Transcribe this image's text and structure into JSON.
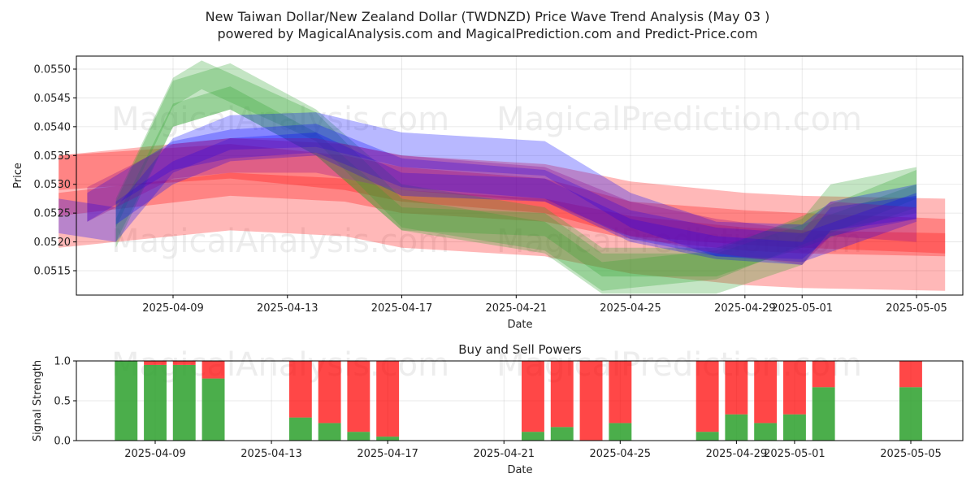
{
  "title": "New Taiwan Dollar/New Zealand Dollar (TWDNZD) Price Wave Trend Analysis (May 03 )",
  "subtitle": "powered by MagicalAnalysis.com and MagicalPrediction.com and Predict-Price.com",
  "watermarks": [
    "MagicalAnalysis.com",
    "MagicalPrediction.com"
  ],
  "chart_data": [
    {
      "type": "area",
      "xlabel": "Date",
      "ylabel": "Price",
      "x_range": [
        "2025-04-05",
        "2025-05-06"
      ],
      "ylim": [
        0.0511,
        0.0552
      ],
      "x_ticks": [
        "2025-04-09",
        "2025-04-13",
        "2025-04-17",
        "2025-04-21",
        "2025-04-25",
        "2025-04-29",
        "2025-05-01",
        "2025-05-05"
      ],
      "y_ticks": [
        "0.0515",
        "0.0520",
        "0.0525",
        "0.0530",
        "0.0535",
        "0.0540",
        "0.0545",
        "0.0550"
      ],
      "grid": true,
      "series": [
        {
          "color": "#ff0000",
          "bands": [
            {
              "width": 0.0016,
              "points": [
                [
                  "2025-04-05",
                  0.0527
                ],
                [
                  "2025-04-11",
                  0.053
                ],
                [
                  "2025-04-15",
                  0.0529
                ],
                [
                  "2025-04-17",
                  0.0527
                ],
                [
                  "2025-04-22",
                  0.05255
                ],
                [
                  "2025-04-25",
                  0.05225
                ],
                [
                  "2025-04-29",
                  0.05205
                ],
                [
                  "2025-05-01",
                  0.052
                ],
                [
                  "2025-05-06",
                  0.05195
                ]
              ]
            },
            {
              "width": 0.0004,
              "points": [
                [
                  "2025-04-05",
                  0.05265
                ],
                [
                  "2025-04-11",
                  0.053
                ],
                [
                  "2025-04-15",
                  0.0529
                ],
                [
                  "2025-04-17",
                  0.0527
                ],
                [
                  "2025-04-22",
                  0.05255
                ],
                [
                  "2025-04-25",
                  0.05225
                ],
                [
                  "2025-04-29",
                  0.05205
                ],
                [
                  "2025-05-01",
                  0.052
                ],
                [
                  "2025-05-06",
                  0.05195
                ]
              ]
            },
            {
              "width": 0.0006,
              "points": [
                [
                  "2025-04-05",
                  0.0532
                ],
                [
                  "2025-04-11",
                  0.0534
                ],
                [
                  "2025-04-15",
                  0.0532
                ],
                [
                  "2025-04-17",
                  0.053
                ],
                [
                  "2025-04-22",
                  0.0528
                ],
                [
                  "2025-04-25",
                  0.0524
                ],
                [
                  "2025-04-29",
                  0.05225
                ],
                [
                  "2025-05-01",
                  0.0522
                ],
                [
                  "2025-05-06",
                  0.0521
                ]
              ]
            }
          ]
        },
        {
          "color": "#2ca02c",
          "bands": [
            {
              "width": 0.0008,
              "points": [
                [
                  "2025-04-07",
                  0.0523
                ],
                [
                  "2025-04-09",
                  0.0544
                ],
                [
                  "2025-04-11",
                  0.0547
                ],
                [
                  "2025-04-14",
                  0.0539
                ],
                [
                  "2025-04-17",
                  0.0526
                ],
                [
                  "2025-04-22",
                  0.0522
                ],
                [
                  "2025-04-24",
                  0.0515
                ],
                [
                  "2025-04-28",
                  0.0515
                ],
                [
                  "2025-05-01",
                  0.052
                ],
                [
                  "2025-05-02",
                  0.0526
                ],
                [
                  "2025-05-05",
                  0.0529
                ]
              ]
            },
            {
              "width": 0.0005,
              "points": [
                [
                  "2025-04-07",
                  0.0525
                ],
                [
                  "2025-04-09",
                  0.0546
                ],
                [
                  "2025-04-10",
                  0.0549
                ],
                [
                  "2025-04-14",
                  0.054
                ],
                [
                  "2025-04-17",
                  0.0525
                ],
                [
                  "2025-04-22",
                  0.0521
                ],
                [
                  "2025-04-24",
                  0.0514
                ],
                [
                  "2025-04-28",
                  0.0516
                ],
                [
                  "2025-05-01",
                  0.0522
                ],
                [
                  "2025-05-05",
                  0.053
                ]
              ]
            },
            {
              "width": 0.0004,
              "points": [
                [
                  "2025-04-07",
                  0.0522
                ],
                [
                  "2025-04-09",
                  0.0542
                ],
                [
                  "2025-04-11",
                  0.0545
                ],
                [
                  "2025-04-14",
                  0.0537
                ],
                [
                  "2025-04-17",
                  0.0524
                ],
                [
                  "2025-04-22",
                  0.0523
                ],
                [
                  "2025-04-24",
                  0.0516
                ],
                [
                  "2025-04-28",
                  0.0516
                ],
                [
                  "2025-05-01",
                  0.0521
                ],
                [
                  "2025-05-05",
                  0.0528
                ]
              ]
            }
          ]
        },
        {
          "color": "#0000ff",
          "bands": [
            {
              "width": 0.0006,
              "points": [
                [
                  "2025-04-05",
                  0.05245
                ],
                [
                  "2025-04-07",
                  0.0523
                ],
                [
                  "2025-04-09",
                  0.0535
                ],
                [
                  "2025-04-11",
                  0.0539
                ],
                [
                  "2025-04-14",
                  0.05395
                ],
                [
                  "2025-04-17",
                  0.0536
                ],
                [
                  "2025-04-22",
                  0.05345
                ],
                [
                  "2025-04-25",
                  0.05255
                ],
                [
                  "2025-04-28",
                  0.05205
                ],
                [
                  "2025-05-01",
                  0.052
                ],
                [
                  "2025-05-02",
                  0.0524
                ],
                [
                  "2025-05-05",
                  0.0527
                ]
              ]
            },
            {
              "width": 0.0005,
              "points": [
                [
                  "2025-04-06",
                  0.0526
                ],
                [
                  "2025-04-09",
                  0.0535
                ],
                [
                  "2025-04-11",
                  0.0537
                ],
                [
                  "2025-04-14",
                  0.0538
                ],
                [
                  "2025-04-17",
                  0.0532
                ],
                [
                  "2025-04-22",
                  0.053
                ],
                [
                  "2025-04-25",
                  0.0523
                ],
                [
                  "2025-04-28",
                  0.052
                ],
                [
                  "2025-05-01",
                  0.0519
                ],
                [
                  "2025-05-05",
                  0.0526
                ]
              ]
            },
            {
              "width": 0.0004,
              "points": [
                [
                  "2025-04-07",
                  0.0525
                ],
                [
                  "2025-04-09",
                  0.0532
                ],
                [
                  "2025-04-11",
                  0.0536
                ],
                [
                  "2025-04-14",
                  0.0537
                ],
                [
                  "2025-04-17",
                  0.053
                ],
                [
                  "2025-04-22",
                  0.0529
                ],
                [
                  "2025-04-25",
                  0.0522
                ],
                [
                  "2025-04-28",
                  0.0519
                ],
                [
                  "2025-05-01",
                  0.0518
                ],
                [
                  "2025-05-02",
                  0.0524
                ],
                [
                  "2025-05-05",
                  0.0526
                ]
              ]
            }
          ]
        },
        {
          "color": "#8b008b",
          "bands": [
            {
              "width": 0.0006,
              "points": [
                [
                  "2025-04-06",
                  0.05265
                ],
                [
                  "2025-04-09",
                  0.0534
                ],
                [
                  "2025-04-11",
                  0.0535
                ],
                [
                  "2025-04-14",
                  0.0535
                ],
                [
                  "2025-04-17",
                  0.0532
                ],
                [
                  "2025-04-22",
                  0.053
                ],
                [
                  "2025-04-25",
                  0.0524
                ],
                [
                  "2025-04-28",
                  0.0521
                ],
                [
                  "2025-05-01",
                  0.0519
                ],
                [
                  "2025-05-02",
                  0.0524
                ],
                [
                  "2025-05-05",
                  0.0523
                ]
              ]
            }
          ]
        }
      ]
    },
    {
      "type": "bar",
      "title": "Buy and Sell Powers",
      "xlabel": "Date",
      "ylabel": "Signal Strength",
      "ylim": [
        0,
        1
      ],
      "y_ticks": [
        "0.0",
        "0.5",
        "1.0"
      ],
      "x_ticks": [
        "2025-04-09",
        "2025-04-13",
        "2025-04-17",
        "2025-04-21",
        "2025-04-25",
        "2025-04-29",
        "2025-05-01",
        "2025-05-05"
      ],
      "buy_color": "#2ca02c",
      "sell_color": "#ff0000",
      "bars": [
        {
          "x": "2025-04-08",
          "buy": 1.0
        },
        {
          "x": "2025-04-09",
          "buy": 0.95
        },
        {
          "x": "2025-04-10",
          "buy": 0.95
        },
        {
          "x": "2025-04-11",
          "buy": 0.78
        },
        {
          "x": "2025-04-14",
          "buy": 0.29
        },
        {
          "x": "2025-04-15",
          "buy": 0.22
        },
        {
          "x": "2025-04-16",
          "buy": 0.11
        },
        {
          "x": "2025-04-17",
          "buy": 0.05
        },
        {
          "x": "2025-04-22",
          "buy": 0.11
        },
        {
          "x": "2025-04-23",
          "buy": 0.17
        },
        {
          "x": "2025-04-24",
          "buy": 0.0
        },
        {
          "x": "2025-04-25",
          "buy": 0.22
        },
        {
          "x": "2025-04-28",
          "buy": 0.11
        },
        {
          "x": "2025-04-29",
          "buy": 0.33
        },
        {
          "x": "2025-04-30",
          "buy": 0.22
        },
        {
          "x": "2025-05-01",
          "buy": 0.33
        },
        {
          "x": "2025-05-02",
          "buy": 0.67
        },
        {
          "x": "2025-05-05",
          "buy": 0.67
        }
      ]
    }
  ]
}
